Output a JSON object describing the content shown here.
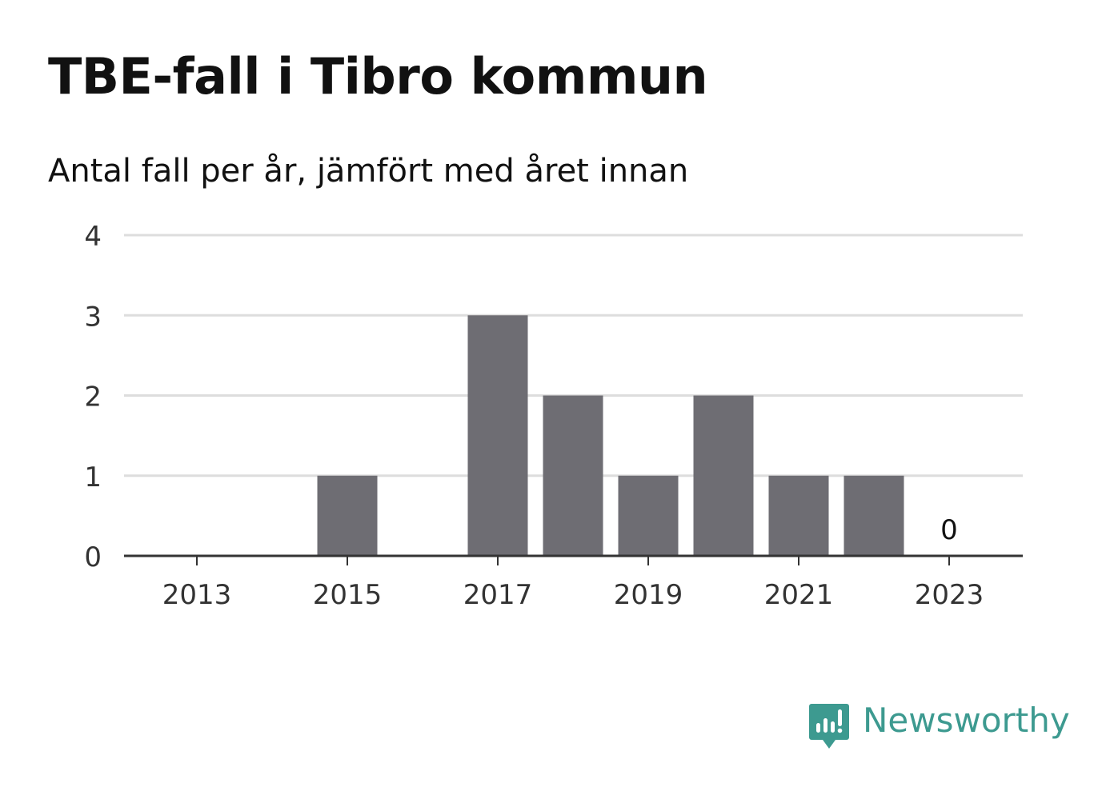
{
  "title": "TBE-fall i Tibro kommun",
  "subtitle": "Antal fall per år, jämfört med året innan",
  "brand": {
    "name": "Newsworthy",
    "icon": "newsworthy-logo-icon",
    "color": "#3d9a90"
  },
  "colors": {
    "bar": "#6e6d73",
    "grid": "#dddddd",
    "axis": "#333333",
    "tick_text": "#333333",
    "label_text": "#111111"
  },
  "chart_data": {
    "type": "bar",
    "categories": [
      "2013",
      "2014",
      "2015",
      "2016",
      "2017",
      "2018",
      "2019",
      "2020",
      "2021",
      "2022",
      "2023"
    ],
    "values": [
      0,
      0,
      1,
      0,
      3,
      2,
      1,
      2,
      1,
      1,
      0
    ],
    "x_tick_labels": [
      "2013",
      "2015",
      "2017",
      "2019",
      "2021",
      "2023"
    ],
    "y_ticks": [
      "0",
      "1",
      "2",
      "3",
      "4"
    ],
    "ylim": [
      0,
      4
    ],
    "grid": true,
    "annotations": [
      {
        "category": "2023",
        "text": "0"
      }
    ]
  }
}
